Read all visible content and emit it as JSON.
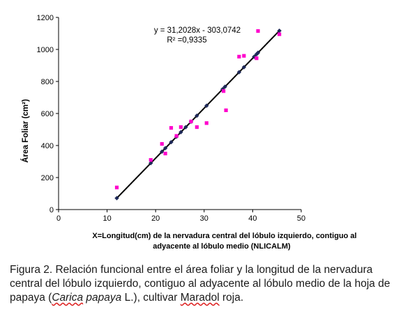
{
  "chart_data": {
    "type": "scatter",
    "title": "",
    "xlabel_line1": "X=Longitud(cm) de la nervadura central del lóbulo izquierdo, contiguo al",
    "xlabel_line2": "adyacente al lóbulo medio (NLICALM)",
    "ylabel": "Área Foliar (cm²)",
    "xlim": [
      0,
      50
    ],
    "ylim": [
      0,
      1200
    ],
    "x_ticks": [
      0,
      10,
      20,
      30,
      40,
      50
    ],
    "y_ticks": [
      0,
      200,
      400,
      600,
      800,
      1000,
      1200
    ],
    "grid": false,
    "equation": "y = 31,2028x - 303,0742",
    "r_squared": "R² =0,9335",
    "colors": {
      "observed": "#ff00cc",
      "fitted": "#1f2a5a",
      "line": "#000000"
    },
    "observed_points": [
      [
        12,
        138
      ],
      [
        19,
        310
      ],
      [
        21.3,
        410
      ],
      [
        22,
        350
      ],
      [
        23.2,
        510
      ],
      [
        24.3,
        460
      ],
      [
        25.2,
        515
      ],
      [
        27.3,
        550
      ],
      [
        28.5,
        515
      ],
      [
        30.5,
        540
      ],
      [
        34,
        740
      ],
      [
        34.5,
        620
      ],
      [
        37.2,
        955
      ],
      [
        38.2,
        960
      ],
      [
        40.8,
        945
      ],
      [
        41.1,
        1115
      ],
      [
        45.5,
        1095
      ]
    ],
    "fitted_x": [
      12,
      19,
      21.3,
      22,
      23.2,
      24.3,
      25.2,
      26.2,
      27.3,
      28.5,
      30.5,
      33.8,
      34.3,
      37.2,
      38.2,
      40.3,
      40.8,
      41.1,
      45.5
    ]
  },
  "caption": {
    "part1": "Figura 2. Relación funcional entre el área foliar y la longitud de la nervadura central del lóbulo izquierdo, contiguo al adyacente al lóbulo medio de la hoja de papaya (",
    "genus": "Carica",
    "species": " papaya",
    "part2": " L.), cultivar ",
    "cultivar": "Maradol",
    "part3": " roja."
  }
}
